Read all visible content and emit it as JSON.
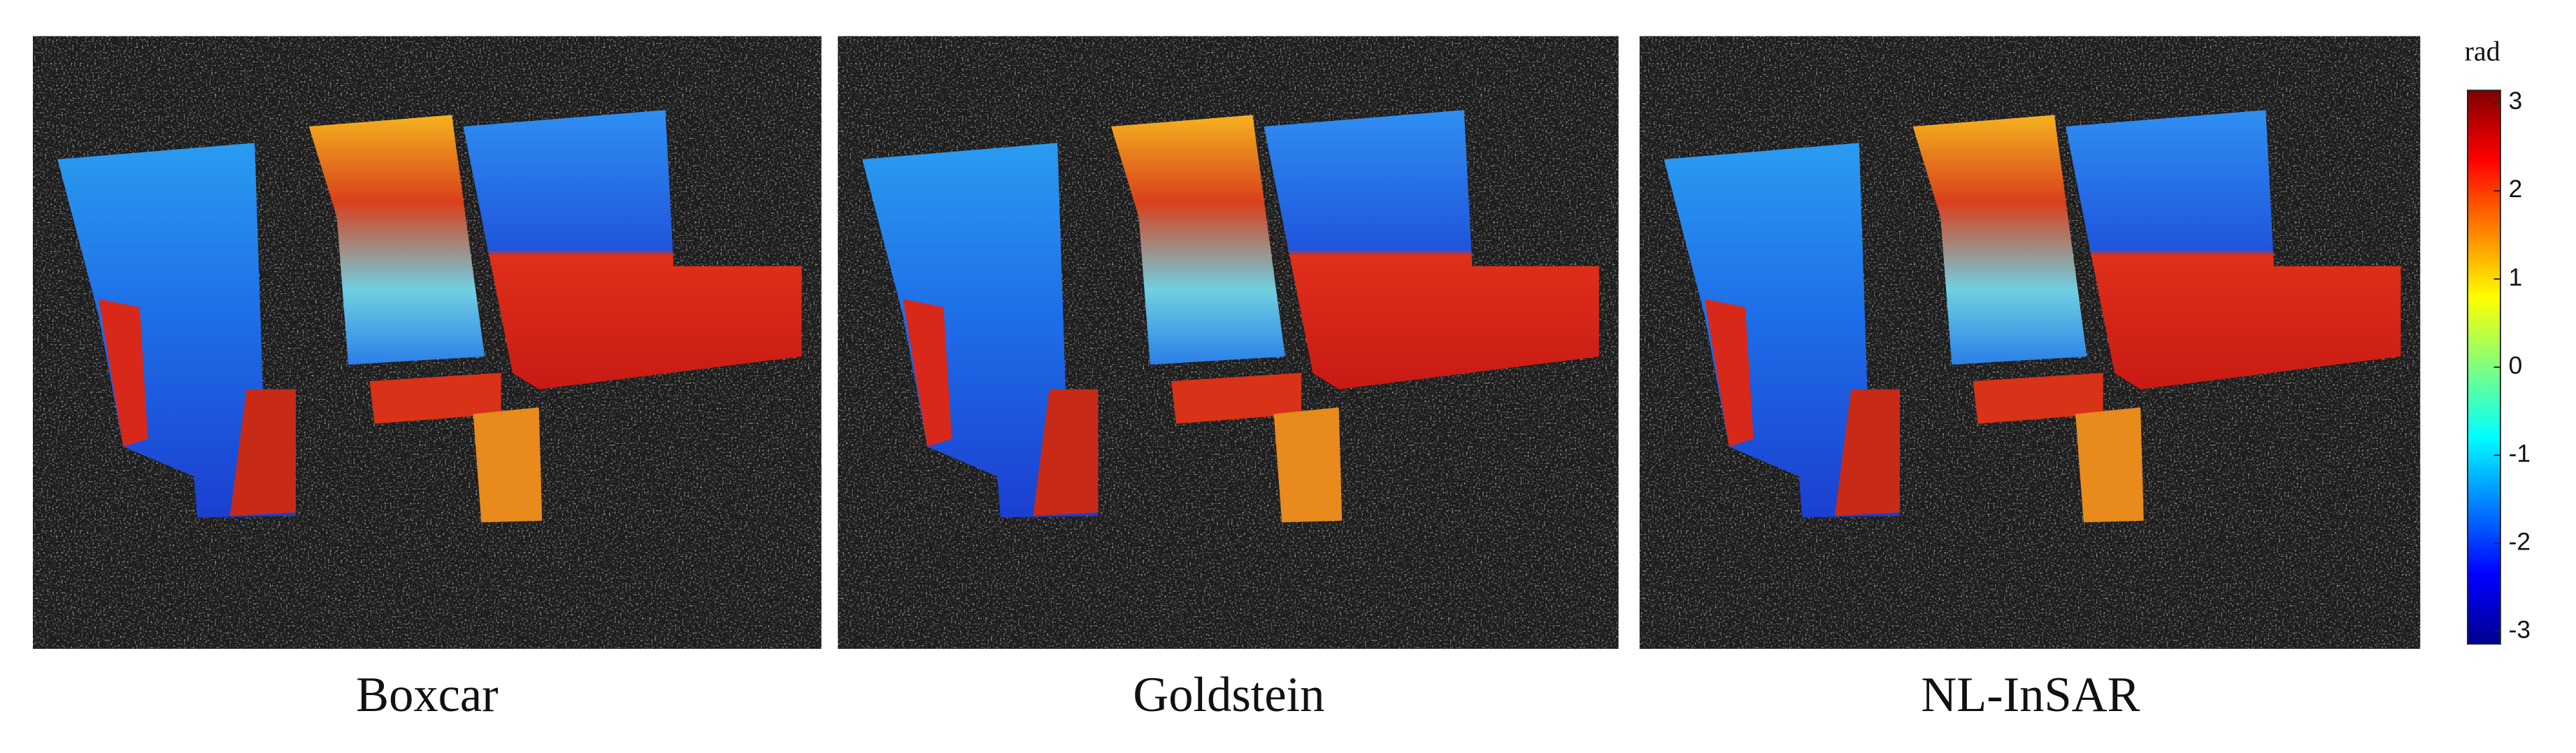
{
  "panels": [
    {
      "label": "Boxcar"
    },
    {
      "label": "Goldstein"
    },
    {
      "label": "NL-InSAR"
    }
  ],
  "colorbar": {
    "title": "rad",
    "lim": [
      -3.14,
      3.14
    ],
    "ticks": [
      -3,
      -2,
      -1,
      0,
      1,
      2,
      3
    ]
  }
}
